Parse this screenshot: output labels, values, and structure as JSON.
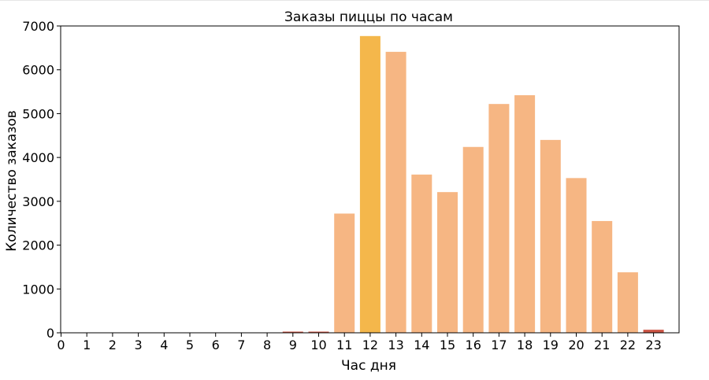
{
  "chart_data": {
    "type": "bar",
    "title": "Заказы пиццы по часам",
    "xlabel": "Час дня",
    "ylabel": "Количество заказов",
    "categories": [
      "0",
      "1",
      "2",
      "3",
      "4",
      "5",
      "6",
      "7",
      "8",
      "9",
      "10",
      "11",
      "12",
      "13",
      "14",
      "15",
      "16",
      "17",
      "18",
      "19",
      "20",
      "21",
      "22",
      "23"
    ],
    "values": [
      0,
      0,
      0,
      0,
      0,
      0,
      0,
      0,
      0,
      8,
      8,
      2720,
      6770,
      6410,
      3610,
      3210,
      4240,
      5220,
      5420,
      4400,
      3530,
      2550,
      1380,
      70
    ],
    "bar_colors": [
      "#f6b683",
      "#f6b683",
      "#f6b683",
      "#f6b683",
      "#f6b683",
      "#f6b683",
      "#f6b683",
      "#f6b683",
      "#f6b683",
      "#cc5545",
      "#cc5545",
      "#f6b683",
      "#f4b74b",
      "#f6b683",
      "#f6b683",
      "#f6b683",
      "#f6b683",
      "#f6b683",
      "#f6b683",
      "#f6b683",
      "#f6b683",
      "#f6b683",
      "#f6b683",
      "#cc5545"
    ],
    "ylim": [
      0,
      7000
    ],
    "yticks": [
      0,
      1000,
      2000,
      3000,
      4000,
      5000,
      6000,
      7000
    ],
    "grid": false,
    "legend": "none"
  }
}
